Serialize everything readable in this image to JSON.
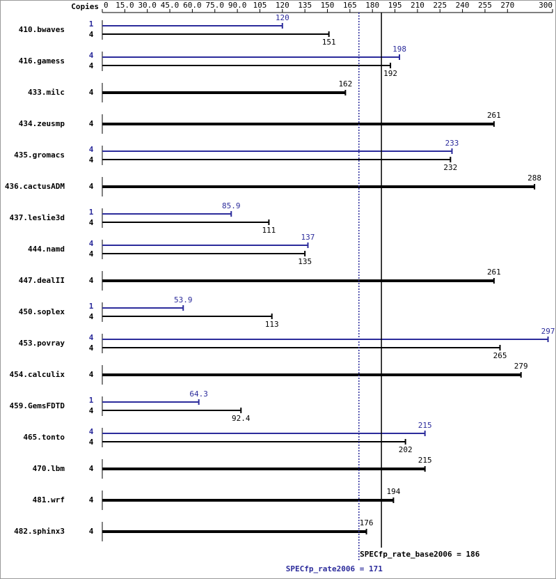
{
  "chart_data": {
    "type": "hbar",
    "copies_label": "Copies",
    "categories": [
      "410.bwaves",
      "416.gamess",
      "433.milc",
      "434.zeusmp",
      "435.gromacs",
      "436.cactusADM",
      "437.leslie3d",
      "444.namd",
      "447.dealII",
      "450.soplex",
      "453.povray",
      "454.calculix",
      "459.GemsFDTD",
      "465.tonto",
      "470.lbm",
      "481.wrf",
      "482.sphinx3"
    ],
    "series": [
      {
        "color": "#000000",
        "copies": [
          4,
          4,
          4,
          4,
          4,
          4,
          4,
          4,
          4,
          4,
          4,
          4,
          4,
          4,
          4,
          4,
          4
        ],
        "values": [
          151,
          192,
          162,
          261,
          232,
          288,
          111,
          135,
          261,
          113,
          265,
          279,
          92.4,
          202,
          215,
          194,
          176
        ]
      },
      {
        "color": "#2b2b9b",
        "copies": [
          1,
          4,
          null,
          null,
          4,
          null,
          1,
          4,
          null,
          1,
          4,
          null,
          1,
          4,
          null,
          null,
          null
        ],
        "values": [
          120,
          198,
          null,
          null,
          233,
          null,
          85.9,
          137,
          null,
          53.9,
          297,
          null,
          64.3,
          215,
          null,
          null,
          null
        ]
      }
    ],
    "xlim": [
      0,
      300
    ],
    "xticks": [
      0,
      {
        "value": 15,
        "label": "15.0"
      },
      {
        "value": 30,
        "label": "30.0"
      },
      {
        "value": 45,
        "label": "45.0"
      },
      {
        "value": 60,
        "label": "60.0"
      },
      {
        "value": 75,
        "label": "75.0"
      },
      {
        "value": 90,
        "label": "90.0"
      },
      105,
      120,
      135,
      150,
      165,
      180,
      195,
      210,
      225,
      240,
      255,
      270,
      300
    ],
    "reference_lines": [
      {
        "text": "SPECfp_rate_base2006 = 186",
        "value": 186,
        "color": "#000000",
        "style": "solid"
      },
      {
        "text": "SPECfp_rate2006 = 171",
        "value": 171,
        "color": "#2b2b9b",
        "style": "dotted"
      }
    ]
  }
}
